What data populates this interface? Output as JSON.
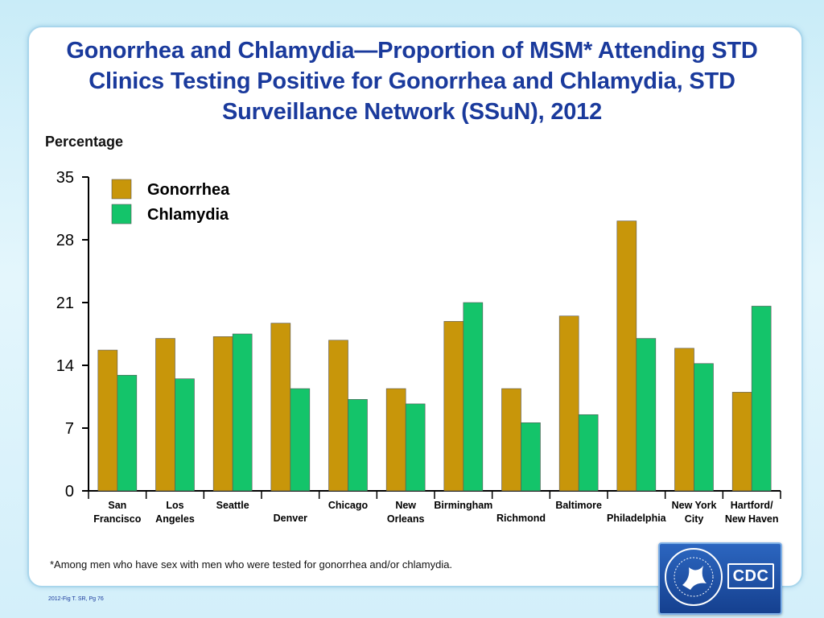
{
  "title": "Gonorrhea and Chlamydia—Proportion of MSM* Attending STD Clinics Testing Positive for Gonorrhea and Chlamydia, STD Surveillance Network (SSuN), 2012",
  "footnote": "*Among men who have sex with men who were tested for gonorrhea and/or chlamydia.",
  "source_note": "2012-Fig T.  SR, Pg 76",
  "logo": {
    "text": "CDC",
    "icon": "cdc-logo"
  },
  "colors": {
    "gonorrhea": "#c8960a",
    "chlamydia": "#14c46a",
    "title": "#1a3a9c",
    "logo_bg": "#1d4fa8"
  },
  "chart_data": {
    "type": "bar",
    "ylabel": "Percentage",
    "ylim": [
      0,
      35
    ],
    "yticks": [
      0,
      7,
      14,
      21,
      28,
      35
    ],
    "categories": [
      [
        "San",
        "Francisco"
      ],
      [
        "Los",
        "Angeles"
      ],
      [
        "Seattle"
      ],
      [
        "Denver"
      ],
      [
        "Chicago"
      ],
      [
        "New",
        "Orleans"
      ],
      [
        "Birmingham"
      ],
      [
        "Richmond"
      ],
      [
        "Baltimore"
      ],
      [
        "Philadelphia"
      ],
      [
        "New York",
        "City"
      ],
      [
        "Hartford/",
        "New Haven"
      ]
    ],
    "label_row": [
      "top",
      "top",
      "top",
      "low",
      "top",
      "top",
      "top",
      "low",
      "top",
      "low",
      "top",
      "top"
    ],
    "series": [
      {
        "name": "Gonorrhea",
        "color": "#c8960a",
        "values": [
          15.7,
          17.0,
          17.2,
          18.7,
          16.8,
          11.4,
          18.9,
          11.4,
          19.5,
          30.1,
          15.9,
          11.0
        ]
      },
      {
        "name": "Chlamydia",
        "color": "#14c46a",
        "values": [
          12.9,
          12.5,
          17.5,
          11.4,
          10.2,
          9.7,
          21.0,
          7.6,
          8.5,
          17.0,
          14.2,
          20.6
        ]
      }
    ],
    "legend_position": "top-left",
    "grid": false
  }
}
